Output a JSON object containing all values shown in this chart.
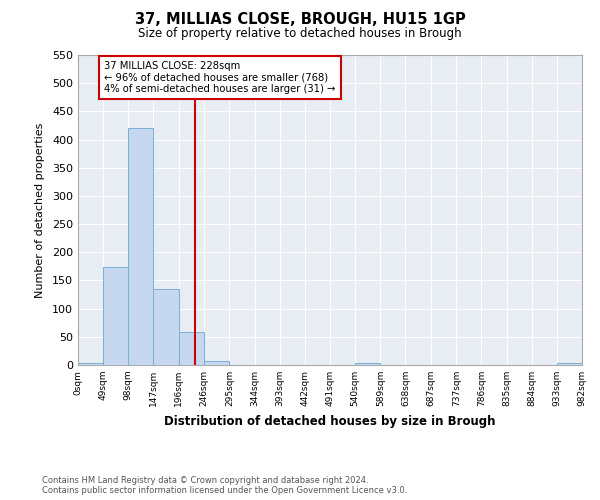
{
  "title": "37, MILLIAS CLOSE, BROUGH, HU15 1GP",
  "subtitle": "Size of property relative to detached houses in Brough",
  "xlabel": "Distribution of detached houses by size in Brough",
  "ylabel": "Number of detached properties",
  "bin_edges": [
    0,
    49,
    98,
    147,
    196,
    246,
    295,
    344,
    393,
    442,
    491,
    540,
    589,
    638,
    687,
    737,
    786,
    835,
    884,
    933,
    982
  ],
  "bin_labels": [
    "0sqm",
    "49sqm",
    "98sqm",
    "147sqm",
    "196sqm",
    "246sqm",
    "295sqm",
    "344sqm",
    "393sqm",
    "442sqm",
    "491sqm",
    "540sqm",
    "589sqm",
    "638sqm",
    "687sqm",
    "737sqm",
    "786sqm",
    "835sqm",
    "884sqm",
    "933sqm",
    "982sqm"
  ],
  "bar_heights": [
    3,
    174,
    421,
    135,
    59,
    7,
    0,
    0,
    0,
    0,
    0,
    3,
    0,
    0,
    0,
    0,
    0,
    0,
    0,
    3
  ],
  "bar_color": "#c5d8ef",
  "bar_edgecolor": "#7aafd4",
  "property_value": 228,
  "vline_color": "#cc0000",
  "ylim": [
    0,
    550
  ],
  "yticks": [
    0,
    50,
    100,
    150,
    200,
    250,
    300,
    350,
    400,
    450,
    500,
    550
  ],
  "annotation_title": "37 MILLIAS CLOSE: 228sqm",
  "annotation_line1": "← 96% of detached houses are smaller (768)",
  "annotation_line2": "4% of semi-detached houses are larger (31) →",
  "annotation_box_color": "#cc0000",
  "footnote1": "Contains HM Land Registry data © Crown copyright and database right 2024.",
  "footnote2": "Contains public sector information licensed under the Open Government Licence v3.0.",
  "fig_bg_color": "#ffffff",
  "plot_bg_color": "#e8edf4"
}
